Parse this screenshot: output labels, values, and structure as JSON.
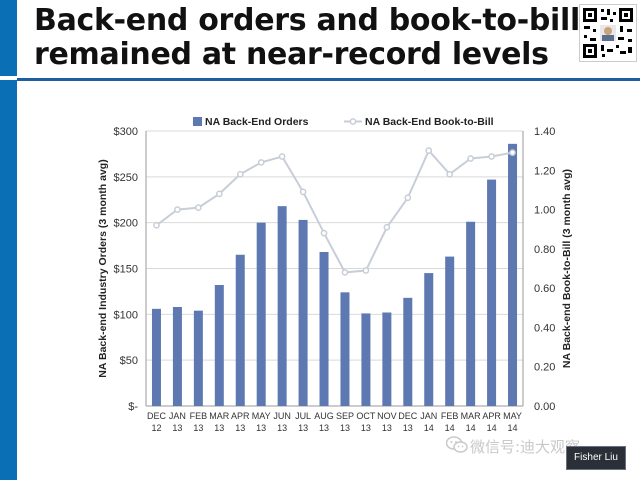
{
  "slide": {
    "title_line1": "Back-end orders and book-to-bill",
    "title_line2": "remained at near-record levels",
    "watermark": "微信号:迪大观察",
    "author": "Fisher Liu",
    "accent_color": "#0a6fb4"
  },
  "chart_data": {
    "type": "bar",
    "categories": [
      [
        "DEC",
        "12"
      ],
      [
        "JAN",
        "13"
      ],
      [
        "FEB",
        "13"
      ],
      [
        "MAR",
        "13"
      ],
      [
        "APR",
        "13"
      ],
      [
        "MAY",
        "13"
      ],
      [
        "JUN",
        "13"
      ],
      [
        "JUL",
        "13"
      ],
      [
        "AUG",
        "13"
      ],
      [
        "SEP",
        "13"
      ],
      [
        "OCT",
        "13"
      ],
      [
        "NOV",
        "13"
      ],
      [
        "DEC",
        "13"
      ],
      [
        "JAN",
        "14"
      ],
      [
        "FEB",
        "14"
      ],
      [
        "MAR",
        "14"
      ],
      [
        "APR",
        "14"
      ],
      [
        "MAY",
        "14"
      ]
    ],
    "series": [
      {
        "name": "NA Back-End Orders",
        "type": "bar",
        "axis": "left",
        "color": "#5e78b2",
        "values": [
          106,
          108,
          104,
          132,
          165,
          200,
          218,
          203,
          168,
          124,
          101,
          102,
          118,
          145,
          163,
          201,
          247,
          286
        ]
      },
      {
        "name": "NA Back-End Book-to-Bill",
        "type": "line",
        "axis": "right",
        "color": "#c8ced8",
        "values": [
          0.92,
          1.0,
          1.01,
          1.08,
          1.18,
          1.24,
          1.27,
          1.09,
          0.88,
          0.68,
          0.69,
          0.91,
          1.06,
          1.3,
          1.18,
          1.26,
          1.27,
          1.29
        ]
      }
    ],
    "ylabel_left": "NA Back-end Industry Orders (3 month avg)",
    "ylabel_right": "NA Back-end Book-to-Bill (3 month avg)",
    "ylim_left": [
      0,
      300
    ],
    "ylim_right": [
      0,
      1.4
    ],
    "yticks_left": [
      "$-",
      "$50",
      "$100",
      "$150",
      "$200",
      "$250",
      "$300"
    ],
    "yticks_right": [
      "0.00",
      "0.20",
      "0.40",
      "0.60",
      "0.80",
      "1.00",
      "1.20",
      "1.40"
    ],
    "grid": true,
    "legend_position": "top"
  }
}
